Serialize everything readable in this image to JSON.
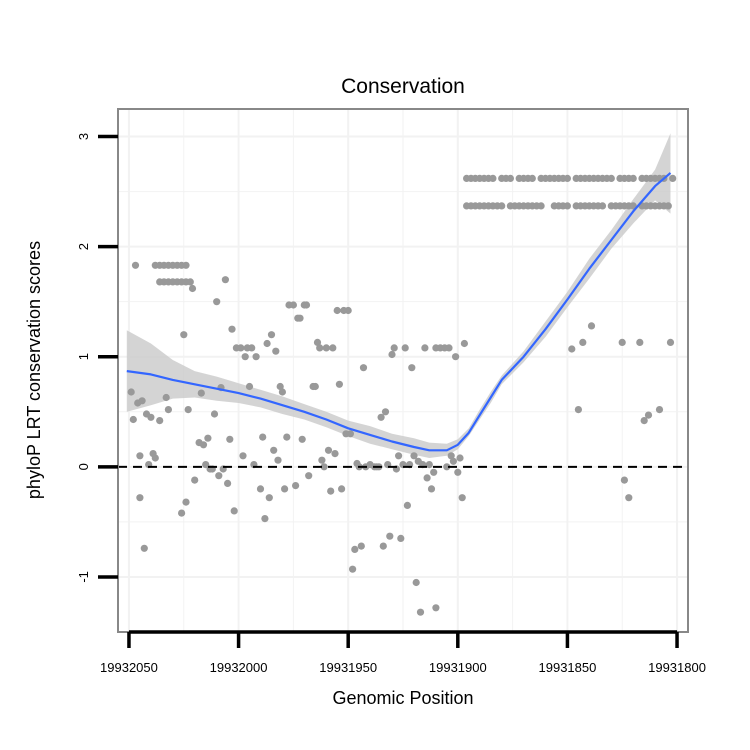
{
  "chart_data": {
    "type": "scatter",
    "title": "Conservation",
    "xlabel": "Genomic Position",
    "ylabel": "phyloP LRT conservation scores",
    "x_reversed": true,
    "xlim": [
      19932055,
      19931795
    ],
    "ylim": [
      -1.5,
      3.25
    ],
    "x_ticks": [
      19932050,
      19932000,
      19931950,
      19931900,
      19931850,
      19931800
    ],
    "x_tick_labels": [
      "19932050",
      "19932000",
      "19931950",
      "19931900",
      "19931850",
      "19931800"
    ],
    "y_ticks": [
      -1,
      0,
      1,
      2,
      3
    ],
    "y_tick_labels": [
      "-1",
      "0",
      "1",
      "2",
      "3"
    ],
    "reference_line": {
      "y": 0,
      "style": "dashed",
      "color": "#000000"
    },
    "colors": {
      "points": "#999999",
      "smooth_line": "#3366FF",
      "ribbon": "#CCCCCC",
      "panel_border": "#888888",
      "grid": "#F2F2F2"
    },
    "points": [
      [
        19932049,
        0.68
      ],
      [
        19932048,
        0.43
      ],
      [
        19932047,
        1.83
      ],
      [
        19932046,
        0.58
      ],
      [
        19932045,
        0.1
      ],
      [
        19932045,
        -0.28
      ],
      [
        19932044,
        0.6
      ],
      [
        19932043,
        -0.74
      ],
      [
        19932042,
        0.48
      ],
      [
        19932041,
        0.02
      ],
      [
        19932040,
        0.45
      ],
      [
        19932039,
        0.12
      ],
      [
        19932038,
        0.08
      ],
      [
        19932038,
        1.83
      ],
      [
        19932036,
        1.83
      ],
      [
        19932034,
        1.83
      ],
      [
        19932032,
        1.83
      ],
      [
        19932030,
        1.83
      ],
      [
        19932028,
        1.83
      ],
      [
        19932026,
        1.83
      ],
      [
        19932024,
        1.83
      ],
      [
        19932036,
        1.68
      ],
      [
        19932034,
        1.68
      ],
      [
        19932032,
        1.68
      ],
      [
        19932030,
        1.68
      ],
      [
        19932028,
        1.68
      ],
      [
        19932026,
        1.68
      ],
      [
        19932024,
        1.68
      ],
      [
        19932022,
        1.68
      ],
      [
        19932036,
        0.42
      ],
      [
        19932033,
        0.63
      ],
      [
        19932032,
        0.52
      ],
      [
        19932026,
        -0.42
      ],
      [
        19932025,
        1.2
      ],
      [
        19932024,
        -0.32
      ],
      [
        19932023,
        0.52
      ],
      [
        19932021,
        1.62
      ],
      [
        19932020,
        -0.12
      ],
      [
        19932018,
        0.22
      ],
      [
        19932017,
        0.67
      ],
      [
        19932016,
        0.2
      ],
      [
        19932015,
        0.02
      ],
      [
        19932014,
        0.26
      ],
      [
        19932013,
        -0.02
      ],
      [
        19932012,
        -0.02
      ],
      [
        19932011,
        0.48
      ],
      [
        19932010,
        1.5
      ],
      [
        19932009,
        -0.08
      ],
      [
        19932008,
        0.72
      ],
      [
        19932007,
        -0.02
      ],
      [
        19932006,
        1.7
      ],
      [
        19932005,
        -0.15
      ],
      [
        19932004,
        0.25
      ],
      [
        19932003,
        1.25
      ],
      [
        19932002,
        -0.4
      ],
      [
        19932001,
        1.08
      ],
      [
        19931999,
        1.08
      ],
      [
        19931998,
        0.1
      ],
      [
        19931997,
        1.0
      ],
      [
        19931996,
        1.08
      ],
      [
        19931995,
        0.73
      ],
      [
        19931994,
        1.08
      ],
      [
        19931993,
        0.02
      ],
      [
        19931992,
        1.0
      ],
      [
        19931990,
        -0.2
      ],
      [
        19931989,
        0.27
      ],
      [
        19931988,
        -0.47
      ],
      [
        19931987,
        1.12
      ],
      [
        19931986,
        -0.28
      ],
      [
        19931985,
        1.2
      ],
      [
        19931984,
        0.15
      ],
      [
        19931983,
        1.05
      ],
      [
        19931982,
        0.06
      ],
      [
        19931981,
        0.73
      ],
      [
        19931980,
        0.68
      ],
      [
        19931979,
        -0.2
      ],
      [
        19931978,
        0.27
      ],
      [
        19931977,
        1.47
      ],
      [
        19931975,
        1.47
      ],
      [
        19931974,
        -0.17
      ],
      [
        19931973,
        1.35
      ],
      [
        19931972,
        1.35
      ],
      [
        19931971,
        0.25
      ],
      [
        19931970,
        1.47
      ],
      [
        19931969,
        1.47
      ],
      [
        19931968,
        -0.08
      ],
      [
        19931966,
        0.73
      ],
      [
        19931965,
        0.73
      ],
      [
        19931964,
        1.13
      ],
      [
        19931963,
        1.08
      ],
      [
        19931962,
        0.06
      ],
      [
        19931961,
        0.0
      ],
      [
        19931960,
        1.08
      ],
      [
        19931959,
        0.15
      ],
      [
        19931958,
        -0.22
      ],
      [
        19931957,
        1.08
      ],
      [
        19931956,
        0.12
      ],
      [
        19931955,
        1.42
      ],
      [
        19931954,
        0.75
      ],
      [
        19931953,
        -0.2
      ],
      [
        19931952,
        1.42
      ],
      [
        19931951,
        0.3
      ],
      [
        19931950,
        1.42
      ],
      [
        19931949,
        0.3
      ],
      [
        19931948,
        -0.93
      ],
      [
        19931947,
        -0.75
      ],
      [
        19931946,
        0.03
      ],
      [
        19931945,
        0.0
      ],
      [
        19931944,
        -0.72
      ],
      [
        19931943,
        0.9
      ],
      [
        19931942,
        0.0
      ],
      [
        19931940,
        0.02
      ],
      [
        19931938,
        0.0
      ],
      [
        19931937,
        0.0
      ],
      [
        19931936,
        0.0
      ],
      [
        19931935,
        0.45
      ],
      [
        19931934,
        -0.72
      ],
      [
        19931933,
        0.5
      ],
      [
        19931932,
        0.02
      ],
      [
        19931931,
        -0.63
      ],
      [
        19931930,
        1.02
      ],
      [
        19931929,
        1.08
      ],
      [
        19931928,
        -0.02
      ],
      [
        19931927,
        0.1
      ],
      [
        19931926,
        -0.65
      ],
      [
        19931925,
        0.02
      ],
      [
        19931924,
        1.08
      ],
      [
        19931923,
        -0.35
      ],
      [
        19931922,
        0.02
      ],
      [
        19931921,
        0.9
      ],
      [
        19931920,
        0.1
      ],
      [
        19931919,
        -1.05
      ],
      [
        19931918,
        0.05
      ],
      [
        19931917,
        -1.32
      ],
      [
        19931916,
        0.02
      ],
      [
        19931915,
        1.08
      ],
      [
        19931914,
        -0.1
      ],
      [
        19931913,
        0.02
      ],
      [
        19931912,
        -0.2
      ],
      [
        19931911,
        -0.05
      ],
      [
        19931910,
        -1.28
      ],
      [
        19931910,
        1.08
      ],
      [
        19931908,
        1.08
      ],
      [
        19931906,
        1.08
      ],
      [
        19931905,
        0.0
      ],
      [
        19931904,
        1.08
      ],
      [
        19931903,
        0.1
      ],
      [
        19931902,
        0.05
      ],
      [
        19931901,
        1.0
      ],
      [
        19931900,
        -0.05
      ],
      [
        19931899,
        0.08
      ],
      [
        19931898,
        -0.28
      ],
      [
        19931897,
        1.12
      ],
      [
        19931896,
        2.62
      ],
      [
        19931894,
        2.62
      ],
      [
        19931892,
        2.62
      ],
      [
        19931890,
        2.62
      ],
      [
        19931888,
        2.62
      ],
      [
        19931886,
        2.62
      ],
      [
        19931884,
        2.62
      ],
      [
        19931880,
        2.62
      ],
      [
        19931878,
        2.62
      ],
      [
        19931876,
        2.62
      ],
      [
        19931872,
        2.62
      ],
      [
        19931870,
        2.62
      ],
      [
        19931868,
        2.62
      ],
      [
        19931866,
        2.62
      ],
      [
        19931862,
        2.62
      ],
      [
        19931860,
        2.62
      ],
      [
        19931858,
        2.62
      ],
      [
        19931856,
        2.62
      ],
      [
        19931854,
        2.62
      ],
      [
        19931852,
        2.62
      ],
      [
        19931850,
        2.62
      ],
      [
        19931896,
        2.37
      ],
      [
        19931894,
        2.37
      ],
      [
        19931892,
        2.37
      ],
      [
        19931890,
        2.37
      ],
      [
        19931888,
        2.37
      ],
      [
        19931886,
        2.37
      ],
      [
        19931884,
        2.37
      ],
      [
        19931882,
        2.37
      ],
      [
        19931880,
        2.37
      ],
      [
        19931876,
        2.37
      ],
      [
        19931874,
        2.37
      ],
      [
        19931872,
        2.37
      ],
      [
        19931870,
        2.37
      ],
      [
        19931868,
        2.37
      ],
      [
        19931866,
        2.37
      ],
      [
        19931864,
        2.37
      ],
      [
        19931862,
        2.37
      ],
      [
        19931856,
        2.37
      ],
      [
        19931854,
        2.37
      ],
      [
        19931852,
        2.37
      ],
      [
        19931850,
        2.37
      ],
      [
        19931846,
        2.62
      ],
      [
        19931844,
        2.62
      ],
      [
        19931842,
        2.62
      ],
      [
        19931840,
        2.62
      ],
      [
        19931838,
        2.62
      ],
      [
        19931836,
        2.62
      ],
      [
        19931834,
        2.62
      ],
      [
        19931832,
        2.62
      ],
      [
        19931830,
        2.62
      ],
      [
        19931826,
        2.62
      ],
      [
        19931824,
        2.62
      ],
      [
        19931822,
        2.62
      ],
      [
        19931820,
        2.62
      ],
      [
        19931816,
        2.62
      ],
      [
        19931814,
        2.62
      ],
      [
        19931812,
        2.62
      ],
      [
        19931810,
        2.62
      ],
      [
        19931808,
        2.62
      ],
      [
        19931806,
        2.62
      ],
      [
        19931802,
        2.62
      ],
      [
        19931846,
        2.37
      ],
      [
        19931844,
        2.37
      ],
      [
        19931842,
        2.37
      ],
      [
        19931840,
        2.37
      ],
      [
        19931838,
        2.37
      ],
      [
        19931836,
        2.37
      ],
      [
        19931834,
        2.37
      ],
      [
        19931830,
        2.37
      ],
      [
        19931828,
        2.37
      ],
      [
        19931826,
        2.37
      ],
      [
        19931824,
        2.37
      ],
      [
        19931822,
        2.37
      ],
      [
        19931820,
        2.37
      ],
      [
        19931816,
        2.37
      ],
      [
        19931814,
        2.37
      ],
      [
        19931812,
        2.37
      ],
      [
        19931810,
        2.37
      ],
      [
        19931808,
        2.37
      ],
      [
        19931806,
        2.37
      ],
      [
        19931804,
        2.37
      ],
      [
        19931848,
        1.07
      ],
      [
        19931845,
        0.52
      ],
      [
        19931843,
        1.13
      ],
      [
        19931839,
        1.28
      ],
      [
        19931825,
        1.13
      ],
      [
        19931824,
        -0.12
      ],
      [
        19931822,
        -0.28
      ],
      [
        19931817,
        1.13
      ],
      [
        19931815,
        0.42
      ],
      [
        19931813,
        0.47
      ],
      [
        19931808,
        0.52
      ],
      [
        19931803,
        1.13
      ]
    ],
    "smooth_line": [
      [
        19932051,
        0.87
      ],
      [
        19932040,
        0.84
      ],
      [
        19932030,
        0.79
      ],
      [
        19932020,
        0.75
      ],
      [
        19932010,
        0.71
      ],
      [
        19932000,
        0.67
      ],
      [
        19931990,
        0.62
      ],
      [
        19931980,
        0.56
      ],
      [
        19931970,
        0.5
      ],
      [
        19931960,
        0.43
      ],
      [
        19931950,
        0.35
      ],
      [
        19931940,
        0.29
      ],
      [
        19931930,
        0.23
      ],
      [
        19931920,
        0.18
      ],
      [
        19931913,
        0.15
      ],
      [
        19931905,
        0.15
      ],
      [
        19931900,
        0.2
      ],
      [
        19931895,
        0.31
      ],
      [
        19931890,
        0.47
      ],
      [
        19931885,
        0.63
      ],
      [
        19931880,
        0.79
      ],
      [
        19931870,
        1.0
      ],
      [
        19931860,
        1.25
      ],
      [
        19931850,
        1.52
      ],
      [
        19931840,
        1.8
      ],
      [
        19931830,
        2.06
      ],
      [
        19931820,
        2.32
      ],
      [
        19931810,
        2.55
      ],
      [
        19931803,
        2.67
      ]
    ],
    "ribbon_lower": [
      [
        19932051,
        0.5
      ],
      [
        19932040,
        0.56
      ],
      [
        19932030,
        0.62
      ],
      [
        19932020,
        0.63
      ],
      [
        19932010,
        0.6
      ],
      [
        19932000,
        0.58
      ],
      [
        19931990,
        0.54
      ],
      [
        19931980,
        0.48
      ],
      [
        19931970,
        0.43
      ],
      [
        19931960,
        0.36
      ],
      [
        19931950,
        0.28
      ],
      [
        19931940,
        0.21
      ],
      [
        19931930,
        0.16
      ],
      [
        19931920,
        0.11
      ],
      [
        19931913,
        0.08
      ],
      [
        19931905,
        0.1
      ],
      [
        19931900,
        0.16
      ],
      [
        19931895,
        0.28
      ],
      [
        19931890,
        0.43
      ],
      [
        19931885,
        0.58
      ],
      [
        19931880,
        0.75
      ],
      [
        19931870,
        0.95
      ],
      [
        19931860,
        1.18
      ],
      [
        19931850,
        1.45
      ],
      [
        19931840,
        1.71
      ],
      [
        19931830,
        1.98
      ],
      [
        19931820,
        2.21
      ],
      [
        19931810,
        2.42
      ],
      [
        19931803,
        2.3
      ]
    ],
    "ribbon_upper": [
      [
        19932051,
        1.24
      ],
      [
        19932040,
        1.12
      ],
      [
        19932030,
        0.97
      ],
      [
        19932020,
        0.87
      ],
      [
        19932010,
        0.82
      ],
      [
        19932000,
        0.76
      ],
      [
        19931990,
        0.7
      ],
      [
        19931980,
        0.64
      ],
      [
        19931970,
        0.57
      ],
      [
        19931960,
        0.5
      ],
      [
        19931950,
        0.42
      ],
      [
        19931940,
        0.37
      ],
      [
        19931930,
        0.3
      ],
      [
        19931920,
        0.26
      ],
      [
        19931913,
        0.22
      ],
      [
        19931905,
        0.21
      ],
      [
        19931900,
        0.25
      ],
      [
        19931895,
        0.35
      ],
      [
        19931890,
        0.52
      ],
      [
        19931885,
        0.68
      ],
      [
        19931880,
        0.83
      ],
      [
        19931870,
        1.05
      ],
      [
        19931860,
        1.32
      ],
      [
        19931850,
        1.59
      ],
      [
        19931840,
        1.89
      ],
      [
        19931830,
        2.15
      ],
      [
        19931820,
        2.43
      ],
      [
        19931810,
        2.7
      ],
      [
        19931803,
        3.03
      ]
    ]
  }
}
